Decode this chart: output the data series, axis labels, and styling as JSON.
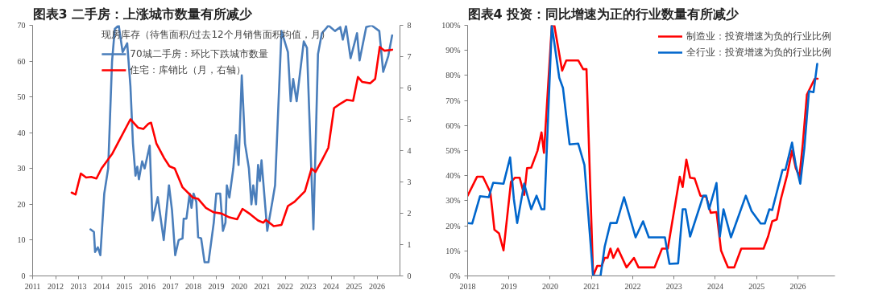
{
  "chart_data": [
    {
      "type": "line",
      "title": "图表3 二手房：上涨城市数量有所减少",
      "legend_title": "现房库存（待售面积/过去12个月销售面积均值，月）",
      "legend": "top",
      "grid": false,
      "xlim": [
        2011,
        2027
      ],
      "xticks": [
        2011,
        2012,
        2013,
        2014,
        2015,
        2016,
        2017,
        2018,
        2019,
        2020,
        2021,
        2022,
        2023,
        2024,
        2025,
        2026
      ],
      "ylim": [
        0,
        70
      ],
      "yticks": [
        0,
        10,
        20,
        30,
        40,
        50,
        60,
        70
      ],
      "y2lim": [
        0,
        8
      ],
      "y2ticks": [
        0,
        1,
        2,
        3,
        4,
        5,
        6,
        7,
        8
      ],
      "series": [
        {
          "name": "70城二手房：环比下跌城市数量",
          "color": "#4a7ebb",
          "x": [
            2013.52,
            2013.67,
            2013.72,
            2013.84,
            2013.95,
            2014.12,
            2014.29,
            2014.46,
            2014.58,
            2014.75,
            2014.92,
            2015.12,
            2015.26,
            2015.37,
            2015.48,
            2015.56,
            2015.63,
            2015.77,
            2015.88,
            2016.1,
            2016.22,
            2016.45,
            2016.71,
            2016.94,
            2017.07,
            2017.21,
            2017.36,
            2017.53,
            2017.58,
            2017.7,
            2017.84,
            2017.92,
            2018.01,
            2018.13,
            2018.21,
            2018.34,
            2018.49,
            2018.66,
            2018.89,
            2019.0,
            2019.17,
            2019.29,
            2019.4,
            2019.46,
            2019.57,
            2019.74,
            2019.86,
            2019.97,
            2020.11,
            2020.25,
            2020.42,
            2020.53,
            2020.61,
            2020.73,
            2020.82,
            2020.9,
            2020.97,
            2021.22,
            2021.44,
            2021.56,
            2021.84,
            2022.12,
            2022.24,
            2022.35,
            2022.5,
            2022.81,
            2022.95,
            2023.23,
            2023.43,
            2023.6,
            2023.83,
            2023.88,
            2024.17,
            2024.4,
            2024.51,
            2024.65,
            2024.85,
            2025.13,
            2025.24,
            2025.53,
            2025.76,
            2026.1,
            2026.27,
            2026.49,
            2026.66
          ],
          "values": [
            13,
            12.3,
            6.7,
            8,
            5.8,
            23,
            30,
            60,
            69,
            70,
            62.5,
            65,
            53,
            37,
            28,
            30.5,
            27,
            32,
            30,
            36.4,
            15.5,
            22,
            10,
            25.3,
            18.4,
            5.8,
            10,
            10.5,
            16,
            16,
            23,
            19,
            23,
            20.7,
            10.8,
            10.5,
            3.8,
            3.8,
            14.9,
            23,
            23,
            12.6,
            14.9,
            25.3,
            21.9,
            30,
            39.3,
            31,
            56,
            37,
            30,
            20,
            25.3,
            20,
            31,
            26.5,
            32.3,
            12.6,
            20.7,
            25.3,
            68.4,
            62.5,
            48.8,
            55,
            48.8,
            65.5,
            63.7,
            13,
            62,
            67.8,
            69.5,
            70,
            68.4,
            69.5,
            66,
            69.8,
            60.8,
            67.8,
            60.2,
            69.5,
            70,
            68.4,
            57,
            61.4,
            67.2
          ]
        },
        {
          "name": "住宅：库销比（月，右轴）",
          "color": "#ff0000",
          "axis": "y2",
          "x": [
            2012.7,
            2012.87,
            2013.1,
            2013.33,
            2013.55,
            2013.78,
            2014.0,
            2014.46,
            2014.8,
            2015.26,
            2015.6,
            2015.82,
            2016.05,
            2016.16,
            2016.39,
            2016.73,
            2016.96,
            2017.19,
            2017.53,
            2017.98,
            2018.21,
            2018.55,
            2018.89,
            2019.23,
            2019.57,
            2019.91,
            2020.14,
            2020.48,
            2020.82,
            2021.05,
            2021.16,
            2021.5,
            2021.84,
            2022.12,
            2022.41,
            2022.86,
            2023.15,
            2023.32,
            2023.6,
            2023.88,
            2024.13,
            2024.39,
            2024.68,
            2024.96,
            2025.17,
            2025.36,
            2025.7,
            2025.92,
            2026.12,
            2026.32,
            2026.66
          ],
          "values": [
            2.66,
            2.6,
            3.27,
            3.14,
            3.16,
            3.11,
            3.43,
            3.89,
            4.36,
            5.0,
            4.73,
            4.69,
            4.86,
            4.89,
            4.23,
            3.76,
            3.5,
            3.43,
            2.83,
            2.5,
            2.46,
            2.17,
            2.03,
            1.99,
            1.87,
            1.81,
            2.14,
            1.97,
            1.77,
            1.7,
            1.79,
            1.59,
            1.63,
            2.23,
            2.37,
            2.7,
            3.43,
            3.32,
            3.69,
            4.09,
            5.36,
            5.49,
            5.62,
            5.59,
            6.35,
            6.19,
            6.15,
            6.29,
            7.31,
            7.19,
            7.22
          ]
        }
      ]
    },
    {
      "type": "line",
      "title": "图表4 投资：同比增速为正的行业数量有所减少",
      "legend": "top right",
      "grid": false,
      "xlim": [
        2018,
        2026.9
      ],
      "xticks": [
        2018,
        2019,
        2020,
        2021,
        2022,
        2023,
        2024,
        2025,
        2026
      ],
      "ylim": [
        0,
        100
      ],
      "yticks": [
        {
          "value": 0,
          "label": "0%"
        },
        {
          "value": 10,
          "label": "10%"
        },
        {
          "value": 20,
          "label": "20%"
        },
        {
          "value": 30,
          "label": "30%"
        },
        {
          "value": 40,
          "label": "40%"
        },
        {
          "value": 50,
          "label": "50%"
        },
        {
          "value": 60,
          "label": "60%"
        },
        {
          "value": 70,
          "label": "70%"
        },
        {
          "value": 80,
          "label": "80%"
        },
        {
          "value": 90,
          "label": "90%"
        },
        {
          "value": 100,
          "label": "100%"
        }
      ],
      "series": [
        {
          "name": "制造业：投资增速为负的行业比例",
          "color": "#ff0000",
          "x": [
            2018.0,
            2018.23,
            2018.37,
            2018.55,
            2018.65,
            2018.76,
            2018.87,
            2019.05,
            2019.15,
            2019.26,
            2019.37,
            2019.44,
            2019.54,
            2019.69,
            2019.79,
            2019.85,
            2020.04,
            2020.1,
            2020.29,
            2020.39,
            2020.68,
            2020.8,
            2020.88,
            2021.04,
            2021.14,
            2021.25,
            2021.32,
            2021.39,
            2021.46,
            2021.53,
            2021.64,
            2021.85,
            2022.03,
            2022.14,
            2022.53,
            2022.71,
            2022.85,
            2023.14,
            2023.21,
            2023.3,
            2023.39,
            2023.5,
            2023.64,
            2023.78,
            2023.89,
            2024.03,
            2024.14,
            2024.24,
            2024.31,
            2024.46,
            2024.63,
            2025.17,
            2025.28,
            2025.38,
            2025.49,
            2025.59,
            2025.74,
            2025.86,
            2025.95,
            2026.04,
            2026.12,
            2026.22,
            2026.3,
            2026.41,
            2026.48
          ],
          "values": [
            32,
            39.6,
            39.6,
            33.4,
            18.4,
            17,
            10.2,
            37.5,
            39.2,
            39.2,
            32.3,
            43,
            43.2,
            49.8,
            57.3,
            49.1,
            100,
            100,
            81.9,
            86,
            86,
            82.5,
            82.5,
            0,
            4,
            4,
            7.2,
            7.2,
            10.9,
            7.2,
            10.9,
            3.4,
            7.2,
            3.4,
            3.4,
            10.9,
            10.9,
            39.6,
            35.5,
            46.4,
            39.2,
            38.9,
            32,
            31.6,
            25.2,
            25.5,
            10.2,
            6.1,
            3.4,
            3.4,
            10.9,
            10.9,
            15.7,
            21.8,
            22.5,
            30.7,
            40.2,
            50,
            43,
            39.6,
            52.5,
            72.3,
            75,
            78.7,
            78.7
          ]
        },
        {
          "name": "全行业：投资增速为负的行业比例",
          "color": "#0066cc",
          "x": [
            2018.0,
            2018.11,
            2018.3,
            2018.51,
            2018.62,
            2018.87,
            2019.03,
            2019.12,
            2019.2,
            2019.37,
            2019.54,
            2019.67,
            2019.79,
            2019.86,
            2020.04,
            2020.22,
            2020.31,
            2020.47,
            2020.68,
            2020.83,
            2021.04,
            2021.22,
            2021.32,
            2021.46,
            2021.61,
            2021.79,
            2022.07,
            2022.25,
            2022.39,
            2022.78,
            2022.89,
            2023.1,
            2023.21,
            2023.28,
            2023.39,
            2023.71,
            2023.78,
            2023.85,
            2024.03,
            2024.11,
            2024.2,
            2024.38,
            2024.74,
            2024.88,
            2025.1,
            2025.2,
            2025.31,
            2025.38,
            2025.63,
            2025.7,
            2025.86,
            2025.95,
            2026.06,
            2026.16,
            2026.27,
            2026.38,
            2026.47
          ],
          "values": [
            21.1,
            20.9,
            31.8,
            31.4,
            37.2,
            36.8,
            47.3,
            30.7,
            21.1,
            36.8,
            26.6,
            32,
            26.6,
            26.6,
            100,
            79.1,
            75,
            52.5,
            52.8,
            44.3,
            0,
            0,
            11.6,
            21.1,
            21.1,
            31.4,
            15.4,
            21.8,
            15.4,
            15.4,
            4.8,
            5,
            26.6,
            26.6,
            15.7,
            32,
            32,
            26.6,
            37.1,
            15.7,
            26.6,
            15.4,
            32,
            25.9,
            20.9,
            20.9,
            26.6,
            26.3,
            42.3,
            42.3,
            53.2,
            44.3,
            36.8,
            51.2,
            73.7,
            73.3,
            84.6
          ]
        }
      ]
    }
  ]
}
